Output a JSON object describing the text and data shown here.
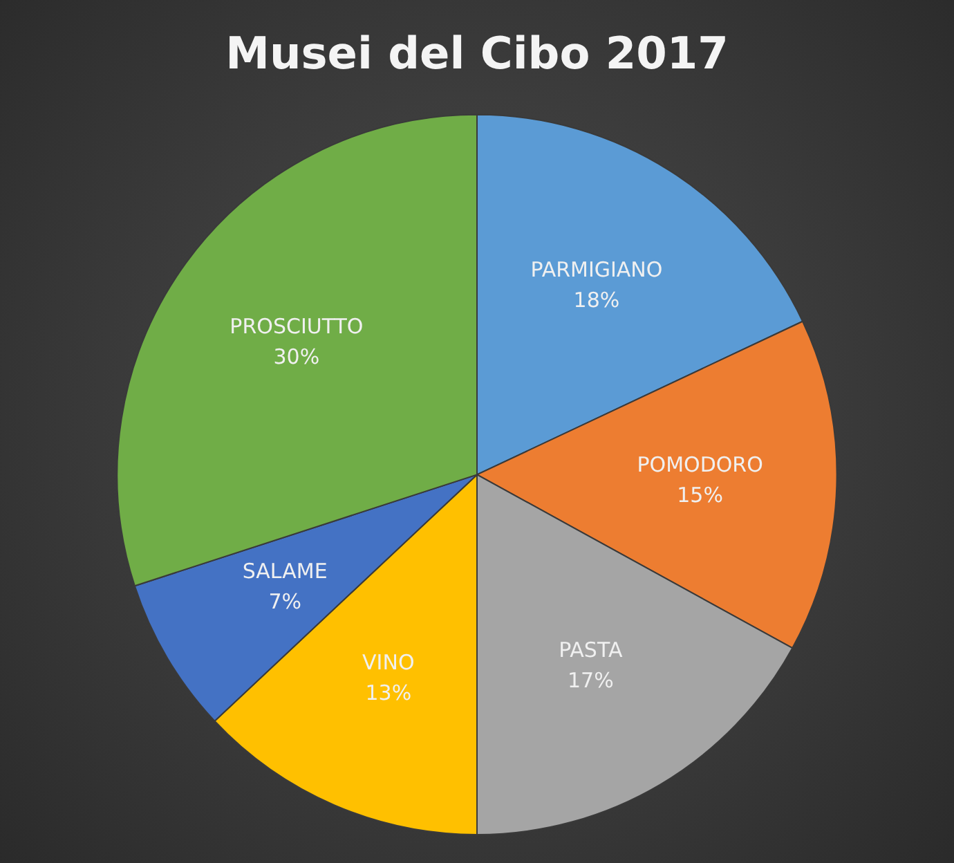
{
  "chart_data": {
    "type": "pie",
    "title": "Musei del Cibo 2017",
    "categories": [
      "PARMIGIANO",
      "POMODORO",
      "PASTA",
      "VINO",
      "SALAME",
      "PROSCIUTTO"
    ],
    "values": [
      18,
      15,
      17,
      13,
      7,
      30
    ],
    "value_labels": [
      "18%",
      "15%",
      "17%",
      "13%",
      "7%",
      "30%"
    ],
    "colors": [
      "#5b9bd5",
      "#ed7d31",
      "#a5a5a5",
      "#ffc000",
      "#4472c4",
      "#70ad47"
    ],
    "legend": false
  }
}
